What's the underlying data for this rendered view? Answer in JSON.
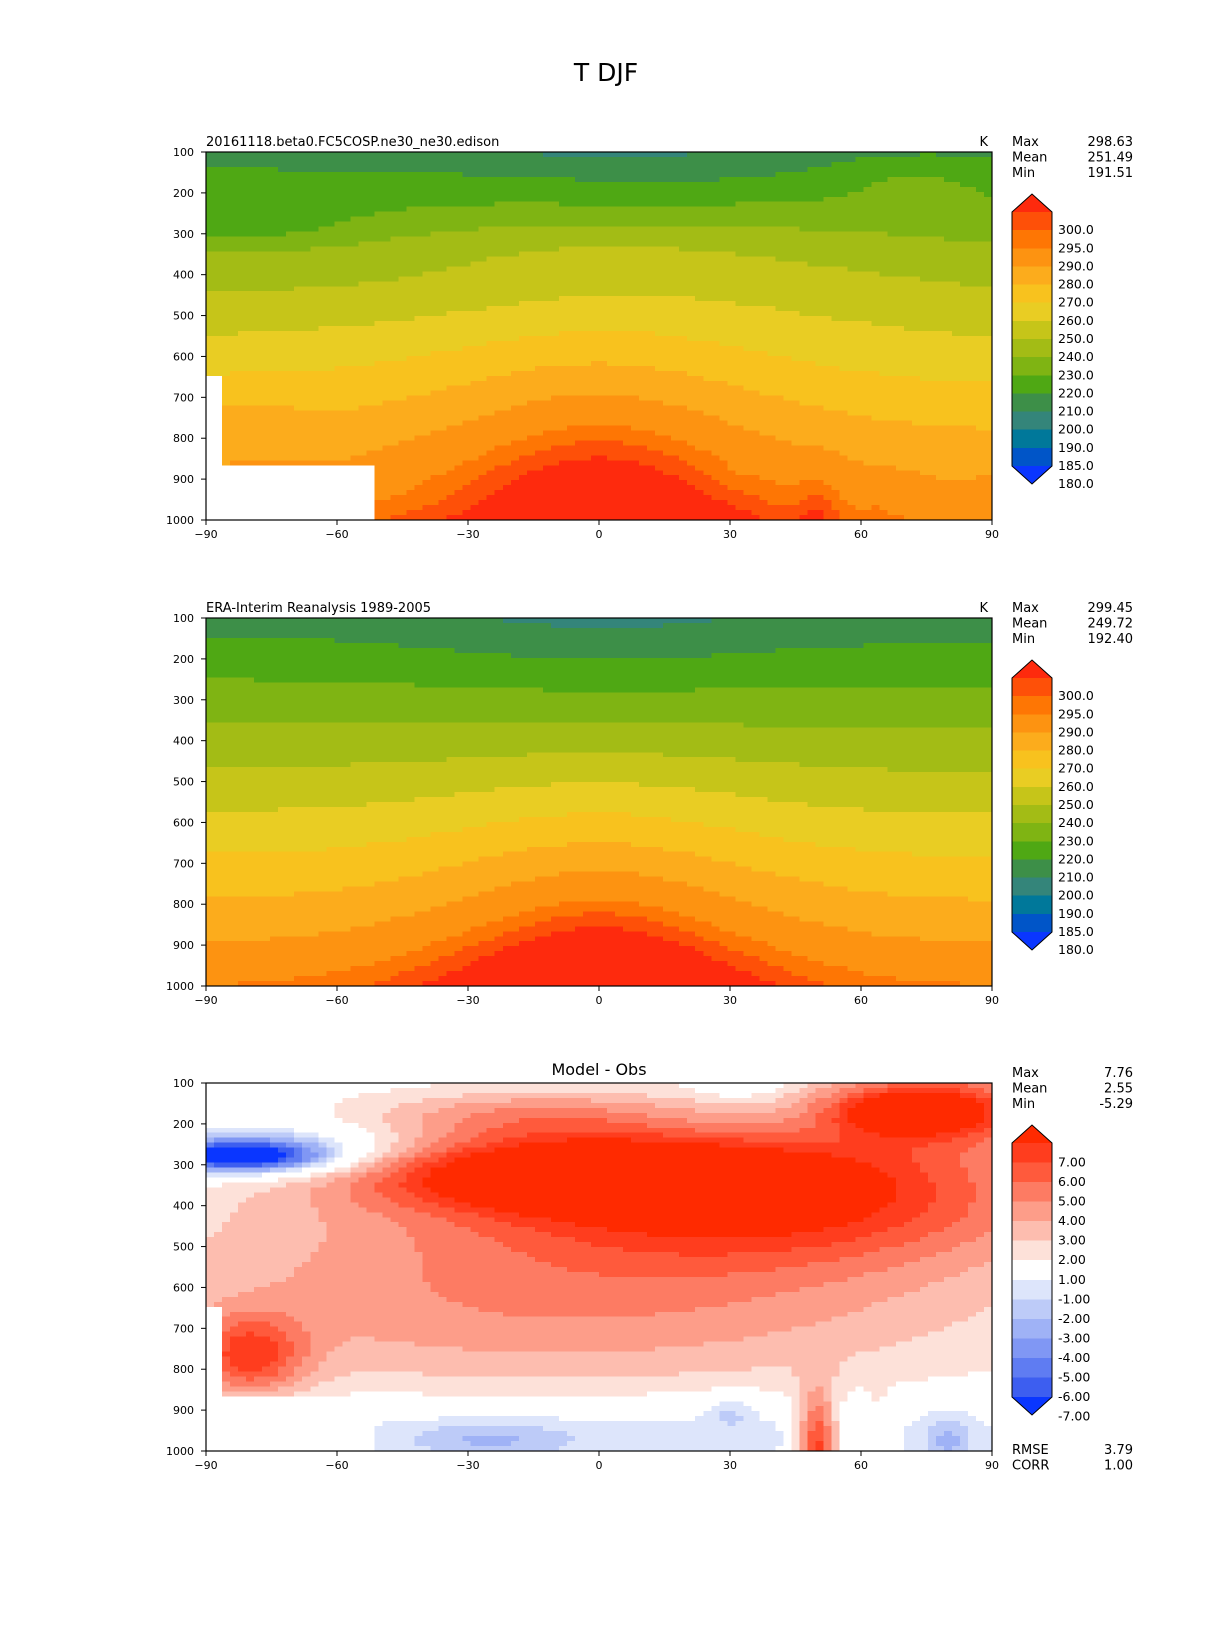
{
  "title": "T DJF",
  "chart_data": [
    {
      "type": "heatmap",
      "title": "20161118.beta0.FC5COSP.ne30_ne30.edison",
      "units": "K",
      "x": [
        -90,
        -60,
        -30,
        0,
        30,
        60,
        90
      ],
      "y": [
        100,
        200,
        300,
        400,
        500,
        600,
        700,
        800,
        900,
        1000
      ],
      "xlim": [
        -90,
        90
      ],
      "ylim": [
        1000,
        100
      ],
      "stats": [
        {
          "name": "Max",
          "value": "298.63"
        },
        {
          "name": "Mean",
          "value": "251.49"
        },
        {
          "name": "Min",
          "value": "191.51"
        }
      ],
      "colorbar": {
        "labels": [
          "300.0",
          "295.0",
          "290.0",
          "280.0",
          "270.0",
          "260.0",
          "250.0",
          "240.0",
          "230.0",
          "220.0",
          "210.0",
          "200.0",
          "190.0",
          "185.0",
          "180.0"
        ],
        "colors": [
          "#fe2a0d",
          "#fe5008",
          "#fe7604",
          "#fd9311",
          "#fcac1c",
          "#f8c21e",
          "#e9cd23",
          "#c6c519",
          "#a3bc15",
          "#7fb413",
          "#4fa814",
          "#3d8f48",
          "#34857a",
          "#00789a",
          "#0055c8",
          "#0a36ff"
        ]
      },
      "levels": [
        {
          "v": 300,
          "color": "#fe2a0d"
        },
        {
          "v": 295,
          "color": "#fe5008"
        },
        {
          "v": 290,
          "color": "#fe7604"
        },
        {
          "v": 280,
          "color": "#fd9311"
        },
        {
          "v": 270,
          "color": "#fcac1c"
        },
        {
          "v": 260,
          "color": "#f8c21e"
        },
        {
          "v": 250,
          "color": "#e9cd23"
        },
        {
          "v": 240,
          "color": "#c6c519"
        },
        {
          "v": 230,
          "color": "#a3bc15"
        },
        {
          "v": 220,
          "color": "#7fb413"
        },
        {
          "v": 210,
          "color": "#4fa814"
        },
        {
          "v": 200,
          "color": "#3d8f48"
        },
        {
          "v": 190,
          "color": "#34857a"
        },
        {
          "v": 185,
          "color": "#00789a"
        },
        {
          "v": 180,
          "color": "#0055c8"
        },
        {
          "v": 0,
          "color": "#0a36ff"
        }
      ],
      "field": "model_t"
    },
    {
      "type": "heatmap",
      "title": "ERA-Interim Reanalysis 1989-2005",
      "units": "K",
      "x": [
        -90,
        -60,
        -30,
        0,
        30,
        60,
        90
      ],
      "y": [
        100,
        200,
        300,
        400,
        500,
        600,
        700,
        800,
        900,
        1000
      ],
      "xlim": [
        -90,
        90
      ],
      "ylim": [
        1000,
        100
      ],
      "stats": [
        {
          "name": "Max",
          "value": "299.45"
        },
        {
          "name": "Mean",
          "value": "249.72"
        },
        {
          "name": "Min",
          "value": "192.40"
        }
      ],
      "colorbar": {
        "labels": [
          "300.0",
          "295.0",
          "290.0",
          "280.0",
          "270.0",
          "260.0",
          "250.0",
          "240.0",
          "230.0",
          "220.0",
          "210.0",
          "200.0",
          "190.0",
          "185.0",
          "180.0"
        ],
        "colors": [
          "#fe2a0d",
          "#fe5008",
          "#fe7604",
          "#fd9311",
          "#fcac1c",
          "#f8c21e",
          "#e9cd23",
          "#c6c519",
          "#a3bc15",
          "#7fb413",
          "#4fa814",
          "#3d8f48",
          "#34857a",
          "#00789a",
          "#0055c8",
          "#0a36ff"
        ]
      },
      "levels": [
        {
          "v": 300,
          "color": "#fe2a0d"
        },
        {
          "v": 295,
          "color": "#fe5008"
        },
        {
          "v": 290,
          "color": "#fe7604"
        },
        {
          "v": 280,
          "color": "#fd9311"
        },
        {
          "v": 270,
          "color": "#fcac1c"
        },
        {
          "v": 260,
          "color": "#f8c21e"
        },
        {
          "v": 250,
          "color": "#e9cd23"
        },
        {
          "v": 240,
          "color": "#c6c519"
        },
        {
          "v": 230,
          "color": "#a3bc15"
        },
        {
          "v": 220,
          "color": "#7fb413"
        },
        {
          "v": 210,
          "color": "#4fa814"
        },
        {
          "v": 200,
          "color": "#3d8f48"
        },
        {
          "v": 190,
          "color": "#34857a"
        },
        {
          "v": 185,
          "color": "#00789a"
        },
        {
          "v": 180,
          "color": "#0055c8"
        },
        {
          "v": 0,
          "color": "#0a36ff"
        }
      ],
      "field": "obs_t"
    },
    {
      "type": "heatmap",
      "title": "Model - Obs",
      "units": "",
      "x": [
        -90,
        -60,
        -30,
        0,
        30,
        60,
        90
      ],
      "y": [
        100,
        200,
        300,
        400,
        500,
        600,
        700,
        800,
        900,
        1000
      ],
      "xlim": [
        -90,
        90
      ],
      "ylim": [
        1000,
        100
      ],
      "stats": [
        {
          "name": "Max",
          "value": "7.76"
        },
        {
          "name": "Mean",
          "value": "2.55"
        },
        {
          "name": "Min",
          "value": "-5.29"
        }
      ],
      "bottom_stats": [
        {
          "name": "RMSE",
          "value": "3.79"
        },
        {
          "name": "CORR",
          "value": "1.00"
        }
      ],
      "colorbar": {
        "labels": [
          "7.00",
          "6.00",
          "5.00",
          "4.00",
          "3.00",
          "2.00",
          "1.00",
          "-1.00",
          "-2.00",
          "-3.00",
          "-4.00",
          "-5.00",
          "-6.00",
          "-7.00"
        ],
        "colors": [
          "#ff2a00",
          "#ff3d1e",
          "#ff5a3c",
          "#fd7b63",
          "#fd9d89",
          "#fdbdaf",
          "#fde1d9",
          "#ffffff",
          "#dde5fb",
          "#bdcbf8",
          "#9fb2f6",
          "#8097f4",
          "#5f7cf2",
          "#3d5ef0",
          "#0a36ff"
        ]
      },
      "levels": [
        {
          "v": 7,
          "color": "#ff2a00"
        },
        {
          "v": 6,
          "color": "#ff3d1e"
        },
        {
          "v": 5,
          "color": "#ff5a3c"
        },
        {
          "v": 4,
          "color": "#fd7b63"
        },
        {
          "v": 3,
          "color": "#fd9d89"
        },
        {
          "v": 2,
          "color": "#fdbdaf"
        },
        {
          "v": 1,
          "color": "#fde1d9"
        },
        {
          "v": -1,
          "color": "#ffffff"
        },
        {
          "v": -2,
          "color": "#dde5fb"
        },
        {
          "v": -3,
          "color": "#bdcbf8"
        },
        {
          "v": -4,
          "color": "#9fb2f6"
        },
        {
          "v": -5,
          "color": "#8097f4"
        },
        {
          "v": -6,
          "color": "#5f7cf2"
        },
        {
          "v": -7,
          "color": "#3d5ef0"
        },
        {
          "v": -99,
          "color": "#0a36ff"
        }
      ],
      "field": "diff_t"
    }
  ]
}
